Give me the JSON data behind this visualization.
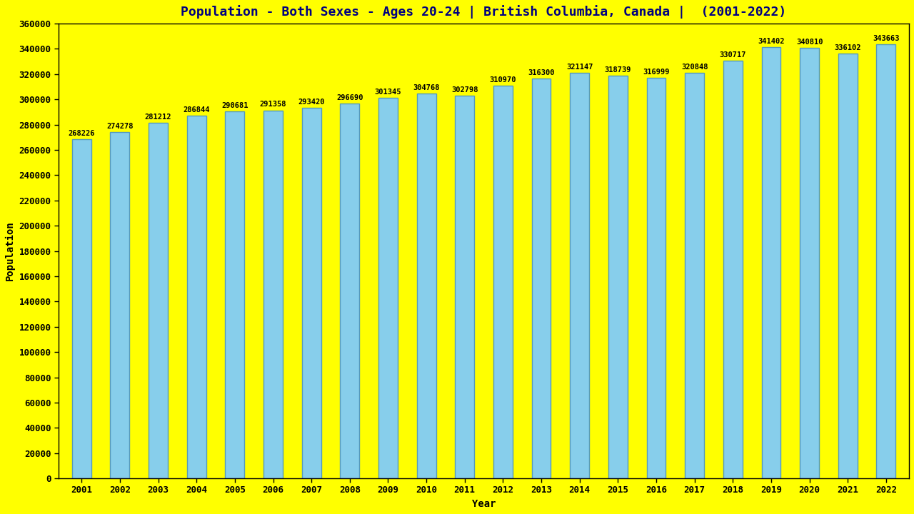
{
  "title": "Population - Both Sexes - Ages 20-24 | British Columbia, Canada |  (2001-2022)",
  "years": [
    2001,
    2002,
    2003,
    2004,
    2005,
    2006,
    2007,
    2008,
    2009,
    2010,
    2011,
    2012,
    2013,
    2014,
    2015,
    2016,
    2017,
    2018,
    2019,
    2020,
    2021,
    2022
  ],
  "values": [
    268226,
    274278,
    281212,
    286844,
    290681,
    291358,
    293420,
    296690,
    301345,
    304768,
    302798,
    310970,
    316300,
    321147,
    318739,
    316999,
    320848,
    330717,
    341402,
    340810,
    336102,
    343663
  ],
  "bar_color": "#87CEEB",
  "bar_edge_color": "#5599BB",
  "background_color": "#FFFF00",
  "title_color": "#000080",
  "label_color": "#000000",
  "tick_color": "#000000",
  "ylabel": "Population",
  "xlabel": "Year",
  "ylim": [
    0,
    360000
  ],
  "yticks": [
    0,
    20000,
    40000,
    60000,
    80000,
    100000,
    120000,
    140000,
    160000,
    180000,
    200000,
    220000,
    240000,
    260000,
    280000,
    300000,
    320000,
    340000,
    360000
  ],
  "title_fontsize": 13,
  "axis_label_fontsize": 10,
  "tick_fontsize": 9,
  "bar_label_fontsize": 7.5,
  "bar_width": 0.5
}
